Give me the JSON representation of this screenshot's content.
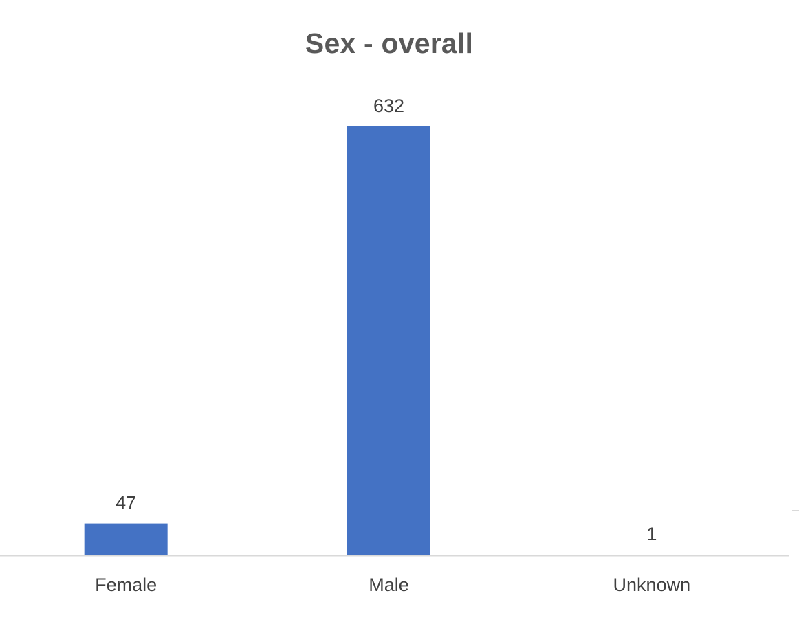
{
  "chart_data": {
    "type": "bar",
    "title": "Sex - overall",
    "xlabel": "",
    "ylabel": "",
    "categories": [
      "Female",
      "Male",
      "Unknown"
    ],
    "values": [
      47,
      632,
      1
    ],
    "ylim": [
      0,
      632
    ],
    "grid": false,
    "legend": "none",
    "bar_color": "#4472C4",
    "axis_color": "#D9D9D9",
    "label_color": "#404040",
    "title_color": "#595959"
  }
}
